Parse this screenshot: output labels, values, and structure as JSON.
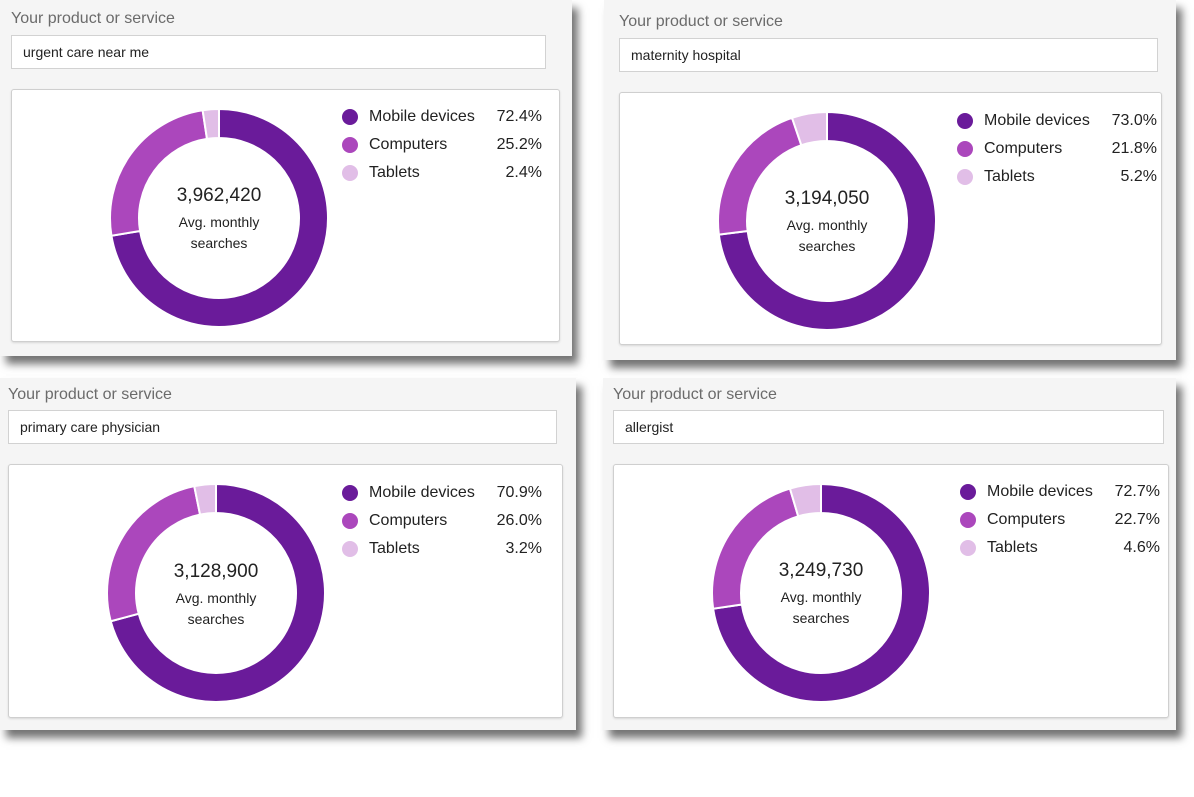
{
  "colors": {
    "mobile": "#6a1b9a",
    "computers": "#ab47bc",
    "tablets": "#e1bee7"
  },
  "panels": [
    {
      "label": "Your product or service",
      "query": "urgent care near me",
      "total": "3,962,420",
      "caption_line1": "Avg. monthly",
      "caption_line2": "searches",
      "legend": [
        {
          "name": "Mobile devices",
          "value": "72.4%"
        },
        {
          "name": "Computers",
          "value": "25.2%"
        },
        {
          "name": "Tablets",
          "value": "2.4%"
        }
      ]
    },
    {
      "label": "Your product or service",
      "query": "maternity hospital",
      "total": "3,194,050",
      "caption_line1": "Avg. monthly",
      "caption_line2": "searches",
      "legend": [
        {
          "name": "Mobile devices",
          "value": "73.0%"
        },
        {
          "name": "Computers",
          "value": "21.8%"
        },
        {
          "name": "Tablets",
          "value": "5.2%"
        }
      ]
    },
    {
      "label": "Your product or service",
      "query": "primary care physician",
      "total": "3,128,900",
      "caption_line1": "Avg. monthly",
      "caption_line2": "searches",
      "legend": [
        {
          "name": "Mobile devices",
          "value": "70.9%"
        },
        {
          "name": "Computers",
          "value": "26.0%"
        },
        {
          "name": "Tablets",
          "value": "3.2%"
        }
      ]
    },
    {
      "label": "Your product or service",
      "query": "allergist",
      "total": "3,249,730",
      "caption_line1": "Avg. monthly",
      "caption_line2": "searches",
      "legend": [
        {
          "name": "Mobile devices",
          "value": "72.7%"
        },
        {
          "name": "Computers",
          "value": "22.7%"
        },
        {
          "name": "Tablets",
          "value": "4.6%"
        }
      ]
    }
  ],
  "chart_data": [
    {
      "type": "pie",
      "categories": [
        "Mobile devices",
        "Computers",
        "Tablets"
      ],
      "values": [
        72.4,
        25.2,
        2.4
      ],
      "title": "3,962,420"
    },
    {
      "type": "pie",
      "categories": [
        "Mobile devices",
        "Computers",
        "Tablets"
      ],
      "values": [
        73.0,
        21.8,
        5.2
      ],
      "title": "3,194,050"
    },
    {
      "type": "pie",
      "categories": [
        "Mobile devices",
        "Computers",
        "Tablets"
      ],
      "values": [
        70.9,
        26.0,
        3.2
      ],
      "title": "3,128,900"
    },
    {
      "type": "pie",
      "categories": [
        "Mobile devices",
        "Computers",
        "Tablets"
      ],
      "values": [
        72.7,
        22.7,
        4.6
      ],
      "title": "3,249,730"
    }
  ]
}
